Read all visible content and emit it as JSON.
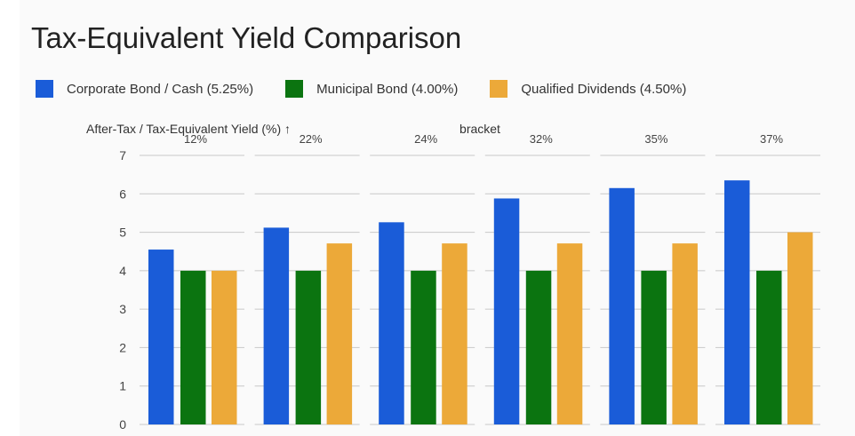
{
  "title": "Tax-Equivalent Yield Comparison",
  "legend": {
    "items": [
      {
        "label": "Corporate Bond / Cash (5.25%)",
        "color": "#1a5cd8"
      },
      {
        "label": "Municipal Bond (4.00%)",
        "color": "#0b7410"
      },
      {
        "label": "Qualified Dividends (4.50%)",
        "color": "#eca939"
      }
    ]
  },
  "chart_data": {
    "type": "bar",
    "title": "Tax-Equivalent Yield Comparison",
    "ylabel": "After-Tax / Tax-Equivalent Yield (%)",
    "facet_label": "bracket",
    "facets": [
      "12%",
      "22%",
      "24%",
      "32%",
      "35%",
      "37%"
    ],
    "ylim": [
      0,
      7
    ],
    "yticks": [
      0,
      1,
      2,
      3,
      4,
      5,
      6,
      7
    ],
    "grid": true,
    "legend_position": "top",
    "series": [
      {
        "name": "Corporate Bond / Cash (5.25%)",
        "color": "#1a5cd8",
        "values": [
          4.55,
          5.12,
          5.26,
          5.88,
          6.15,
          6.35
        ]
      },
      {
        "name": "Municipal Bond (4.00%)",
        "color": "#0b7410",
        "values": [
          4.0,
          4.0,
          4.0,
          4.0,
          4.0,
          4.0
        ]
      },
      {
        "name": "Qualified Dividends (4.50%)",
        "color": "#eca939",
        "values": [
          4.0,
          4.71,
          4.71,
          4.71,
          4.71,
          5.0
        ]
      }
    ]
  }
}
